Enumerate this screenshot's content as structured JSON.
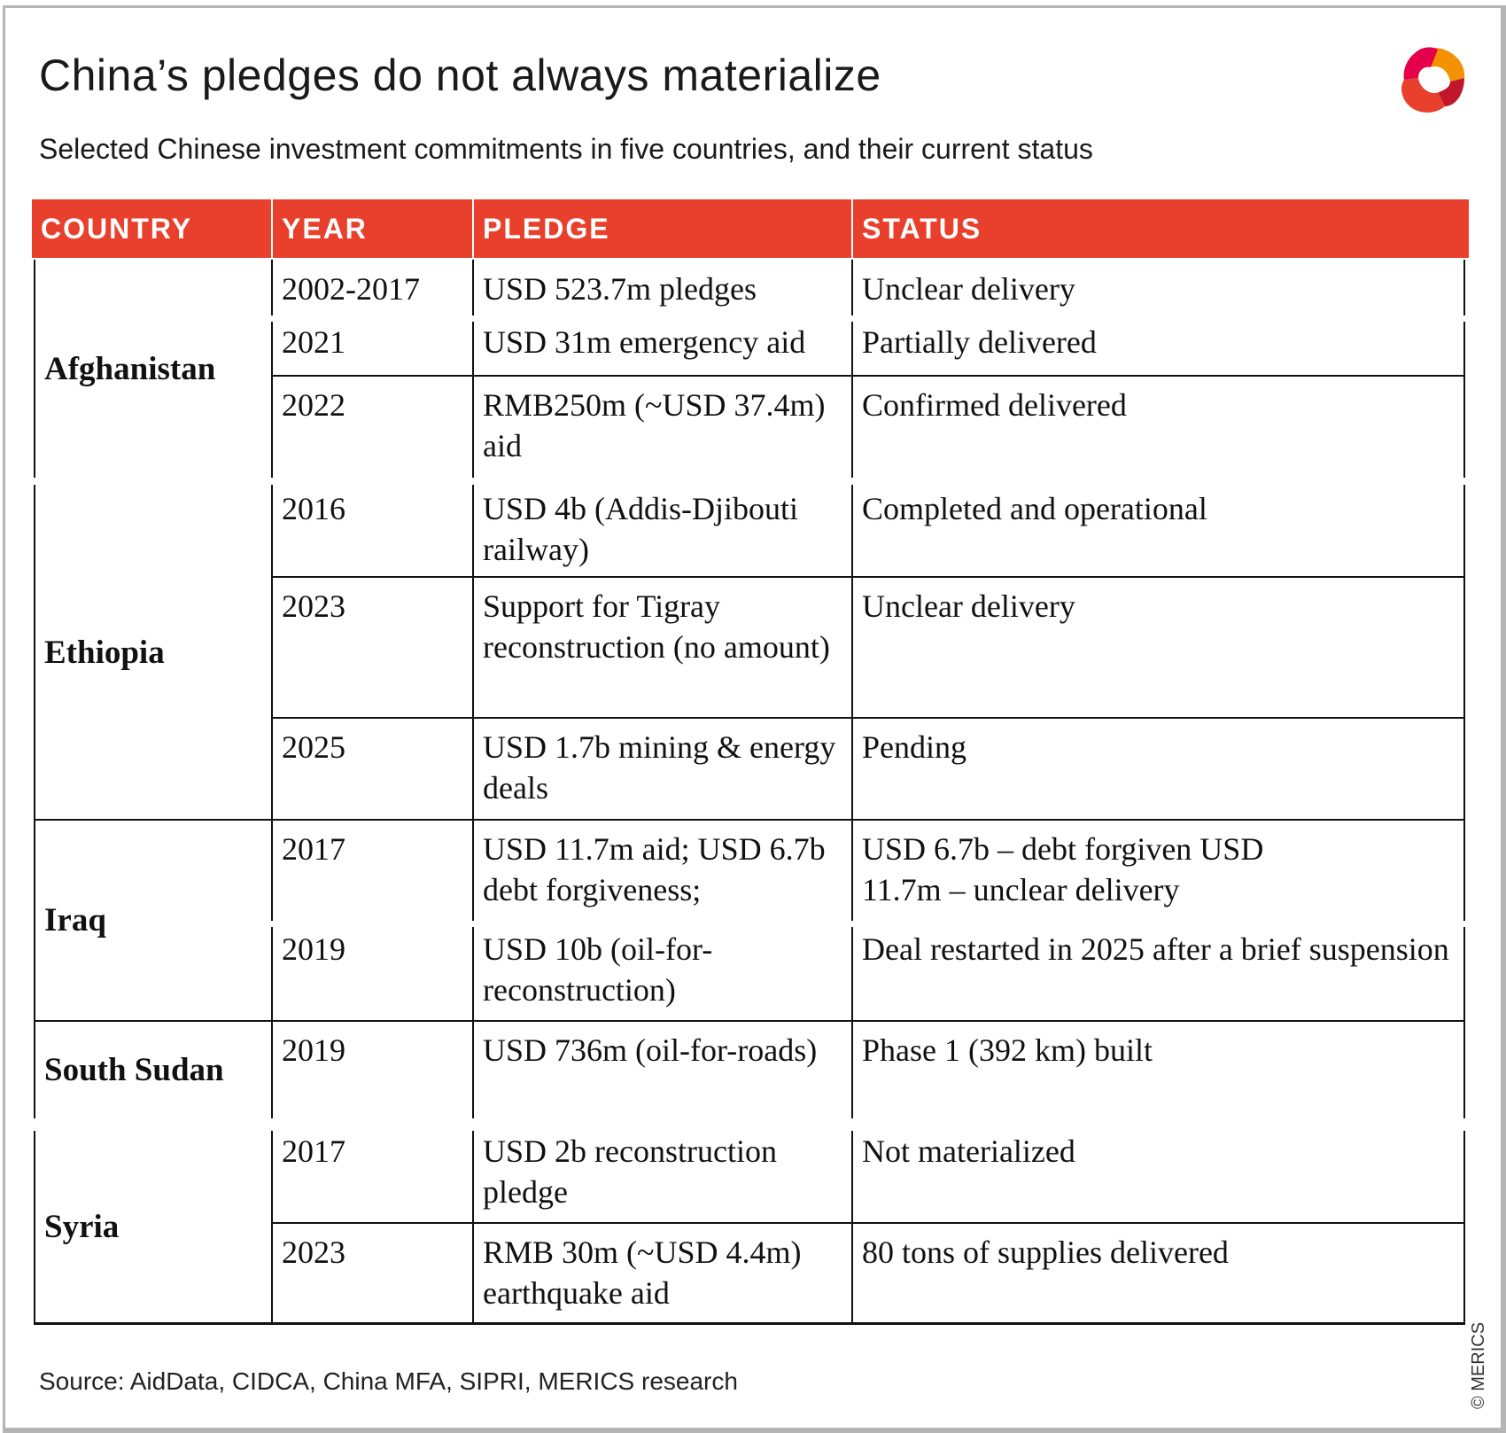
{
  "title": "China’s pledges do not always materialize",
  "subtitle": "Selected Chinese investment commitments in five countries, and their current status",
  "accent_color": "#e8402c",
  "logo": "MERICS logo",
  "headers": {
    "country": "COUNTRY",
    "year": "YEAR",
    "pledge": "PLEDGE",
    "status": "STATUS"
  },
  "countries": [
    "Afghanistan",
    "Ethiopia",
    "Iraq",
    "South Sudan",
    "Syria"
  ],
  "rows": [
    {
      "country": "Afghanistan",
      "year": "2002-2017",
      "pledge": "USD 523.7m pledges",
      "status": "Unclear delivery"
    },
    {
      "country": "Afghanistan",
      "year": "2021",
      "pledge": "USD 31m emergency aid",
      "status": "Partially delivered"
    },
    {
      "country": "Afghanistan",
      "year": "2022",
      "pledge": "RMB250m (~USD 37.4m) aid",
      "status": "Confirmed delivered"
    },
    {
      "country": "Ethiopia",
      "year": "2016",
      "pledge": "USD 4b (Addis-Djibouti railway)",
      "status": "Completed and operational"
    },
    {
      "country": "Ethiopia",
      "year": "2023",
      "pledge": "Support for Tigray reconstruction (no amount)",
      "status": "Unclear delivery"
    },
    {
      "country": "Ethiopia",
      "year": "2025",
      "pledge": "USD 1.7b mining & energy deals",
      "status": "Pending"
    },
    {
      "country": "Iraq",
      "year": "2017",
      "pledge": "USD 11.7m aid; USD 6.7b debt forgiveness;",
      "status": "USD 6.7b – debt forgiven USD 11.7m – unclear delivery"
    },
    {
      "country": "Iraq",
      "year": "2019",
      "pledge": "USD 10b (oil-for-reconstruction)",
      "status": "Deal restarted in 2025 after a brief suspension"
    },
    {
      "country": "South Sudan",
      "year": "2019",
      "pledge": "USD 736m (oil-for-roads)",
      "status": "Phase 1 (392 km) built"
    },
    {
      "country": "Syria",
      "year": "2017",
      "pledge": "USD 2b reconstruction pledge",
      "status": "Not materialized"
    },
    {
      "country": "Syria",
      "year": "2023",
      "pledge": "RMB 30m (~USD 4.4m) earthquake aid",
      "status": "80 tons of supplies delivered"
    }
  ],
  "source": "Source: AidData, CIDCA, China MFA, SIPRI, MERICS research",
  "copyright": "© MERICS"
}
